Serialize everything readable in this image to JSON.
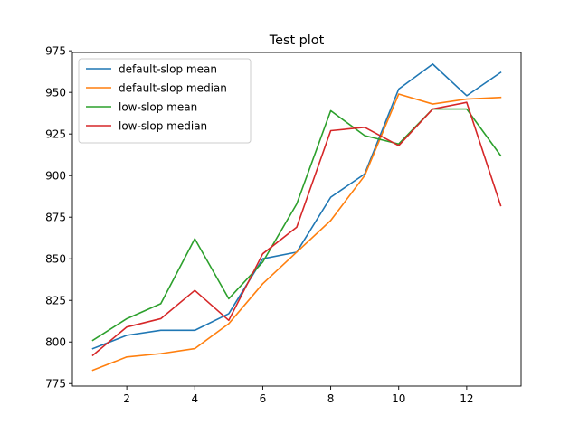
{
  "chart_data": {
    "type": "line",
    "title": "Test plot",
    "xlabel": "",
    "ylabel": "",
    "xlim": [
      0.4,
      13.6
    ],
    "ylim": [
      773.5,
      974
    ],
    "xticks": [
      2,
      4,
      6,
      8,
      10,
      12
    ],
    "yticks": [
      775,
      800,
      825,
      850,
      875,
      900,
      925,
      950,
      975
    ],
    "grid": false,
    "legend_position": "top-left",
    "x": [
      1,
      2,
      3,
      4,
      5,
      6,
      7,
      8,
      9,
      10,
      11,
      12,
      13
    ],
    "series": [
      {
        "name": "default-slop mean",
        "color": "#1f77b4",
        "values": [
          796,
          804,
          807,
          807,
          817,
          850,
          854,
          887,
          901,
          952,
          967,
          948,
          962
        ]
      },
      {
        "name": "default-slop median",
        "color": "#ff7f0e",
        "values": [
          783,
          791,
          793,
          796,
          811,
          835,
          854,
          873,
          900,
          949,
          943,
          946,
          947
        ]
      },
      {
        "name": "low-slop mean",
        "color": "#2ca02c",
        "values": [
          801,
          814,
          823,
          862,
          826,
          848,
          883,
          939,
          924,
          919,
          940,
          940,
          912
        ]
      },
      {
        "name": "low-slop median",
        "color": "#d62728",
        "values": [
          792,
          809,
          814,
          831,
          813,
          853,
          869,
          927,
          929,
          918,
          940,
          944,
          882
        ]
      }
    ]
  }
}
